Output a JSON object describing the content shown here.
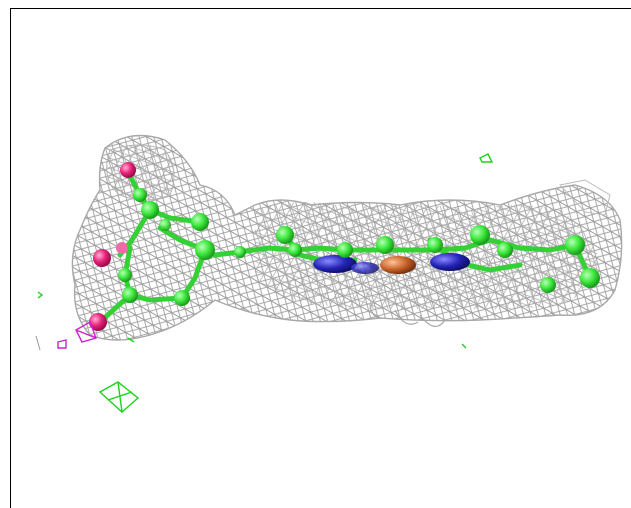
{
  "viewer": {
    "background": "#ffffff",
    "border_color": "#000000"
  },
  "molecule": {
    "carbon_color": "#3de83d",
    "oxygen_color": "#e8227a",
    "nitrogen_color": "#2424b8",
    "metal_color": "#c8642a",
    "magnesium_color": "#c020c0"
  },
  "density_map": {
    "mesh_color": "#8c8c8c",
    "difference_positive_color": "#1ed21e",
    "difference_negative_color": "#d020d0"
  }
}
